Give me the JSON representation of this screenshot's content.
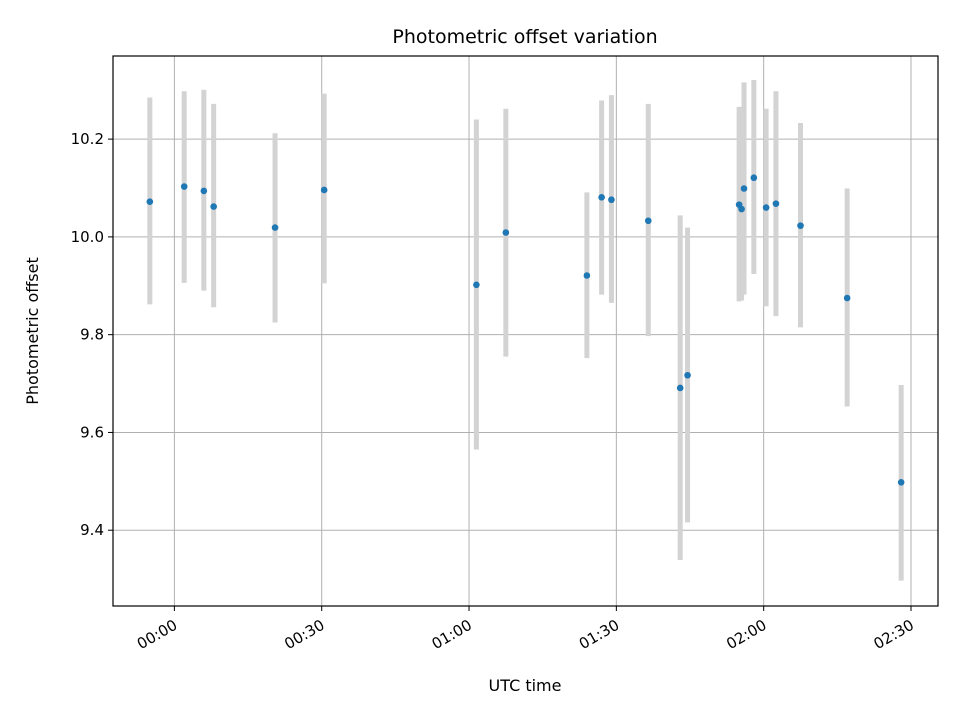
{
  "chart_data": {
    "type": "scatter",
    "title": "Photometric offset variation",
    "xlabel": "UTC time",
    "ylabel": "Photometric offset",
    "x_tick_labels": [
      "00:00",
      "00:30",
      "01:00",
      "01:30",
      "02:00",
      "02:30"
    ],
    "x_ticks": [
      "00:00",
      "00:30",
      "01:00",
      "01:30",
      "02:00",
      "02:30"
    ],
    "xlim": [
      "-00:12.5",
      "02:35.5"
    ],
    "ylim": [
      9.245,
      10.37
    ],
    "y_ticks": [
      9.4,
      9.6,
      9.8,
      10.0,
      10.2
    ],
    "y_tick_labels": [
      "9.4",
      "9.6",
      "9.8",
      "10.0",
      "10.2"
    ],
    "grid": true,
    "colors": {
      "point": "#1f77b4",
      "errorbar": "#d3d3d3",
      "grid": "#b0b0b0"
    },
    "points": [
      {
        "x": "-00:05",
        "y": 10.072,
        "ylow": 9.862,
        "yhigh": 10.285
      },
      {
        "x": "00:02",
        "y": 10.103,
        "ylow": 9.906,
        "yhigh": 10.298
      },
      {
        "x": "00:06",
        "y": 10.094,
        "ylow": 9.89,
        "yhigh": 10.301
      },
      {
        "x": "00:08",
        "y": 10.062,
        "ylow": 9.856,
        "yhigh": 10.272
      },
      {
        "x": "00:20.5",
        "y": 10.019,
        "ylow": 9.825,
        "yhigh": 10.212
      },
      {
        "x": "00:30.5",
        "y": 10.096,
        "ylow": 9.905,
        "yhigh": 10.293
      },
      {
        "x": "01:01.5",
        "y": 9.902,
        "ylow": 9.565,
        "yhigh": 10.24
      },
      {
        "x": "01:07.5",
        "y": 10.009,
        "ylow": 9.755,
        "yhigh": 10.262
      },
      {
        "x": "01:24",
        "y": 9.921,
        "ylow": 9.752,
        "yhigh": 10.091
      },
      {
        "x": "01:27",
        "y": 10.081,
        "ylow": 9.882,
        "yhigh": 10.279
      },
      {
        "x": "01:29",
        "y": 10.076,
        "ylow": 9.865,
        "yhigh": 10.29
      },
      {
        "x": "01:36.5",
        "y": 10.033,
        "ylow": 9.797,
        "yhigh": 10.272
      },
      {
        "x": "01:43",
        "y": 9.691,
        "ylow": 9.339,
        "yhigh": 10.044
      },
      {
        "x": "01:44.5",
        "y": 9.717,
        "ylow": 9.416,
        "yhigh": 10.019
      },
      {
        "x": "01:55",
        "y": 10.066,
        "ylow": 9.868,
        "yhigh": 10.266
      },
      {
        "x": "01:55.5",
        "y": 10.057,
        "ylow": 9.87,
        "yhigh": 10.266
      },
      {
        "x": "01:56",
        "y": 10.099,
        "ylow": 9.882,
        "yhigh": 10.316
      },
      {
        "x": "01:58",
        "y": 10.121,
        "ylow": 9.924,
        "yhigh": 10.321
      },
      {
        "x": "02:00.5",
        "y": 10.06,
        "ylow": 9.858,
        "yhigh": 10.262
      },
      {
        "x": "02:02.5",
        "y": 10.068,
        "ylow": 9.838,
        "yhigh": 10.298
      },
      {
        "x": "02:07.5",
        "y": 10.023,
        "ylow": 9.815,
        "yhigh": 10.233
      },
      {
        "x": "02:17",
        "y": 9.875,
        "ylow": 9.653,
        "yhigh": 10.099
      },
      {
        "x": "02:28",
        "y": 9.498,
        "ylow": 9.297,
        "yhigh": 9.697
      }
    ]
  }
}
